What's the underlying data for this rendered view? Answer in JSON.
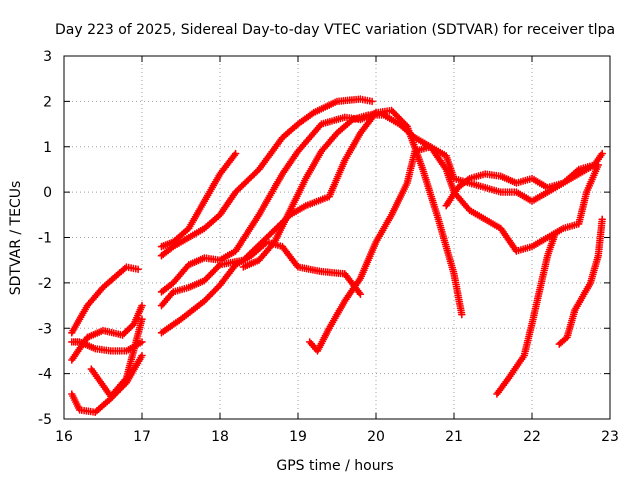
{
  "chart_data": {
    "type": "scatter",
    "title": "Day 223 of 2025, Sidereal Day-to-day VTEC variation (SDTVAR) for receiver tlpa",
    "xlabel": "GPS time / hours",
    "ylabel": "SDTVAR / TECUs",
    "xlim": [
      16,
      23
    ],
    "ylim": [
      -5,
      3
    ],
    "xticks": [
      "16",
      "17",
      "18",
      "19",
      "20",
      "21",
      "22",
      "23"
    ],
    "yticks": [
      "-5",
      "-4",
      "-3",
      "-2",
      "-1",
      "0",
      "1",
      "2",
      "3"
    ],
    "grid": true,
    "marker": "+",
    "color": "#ff0000",
    "series": [
      {
        "name": "s1",
        "x": [
          16.1,
          16.3,
          16.5,
          16.75,
          16.9,
          17.0
        ],
        "y": [
          -3.7,
          -3.2,
          -3.05,
          -3.15,
          -2.9,
          -2.5
        ]
      },
      {
        "name": "s2",
        "x": [
          16.1,
          16.3,
          16.5,
          16.8,
          16.95
        ],
        "y": [
          -3.1,
          -2.5,
          -2.1,
          -1.65,
          -1.7
        ]
      },
      {
        "name": "s3",
        "x": [
          16.1,
          16.2,
          16.4,
          16.6,
          16.8,
          17.0
        ],
        "y": [
          -3.3,
          -3.3,
          -3.45,
          -3.5,
          -3.5,
          -3.3
        ]
      },
      {
        "name": "s4",
        "x": [
          16.1,
          16.2,
          16.4,
          16.6,
          16.8,
          17.0
        ],
        "y": [
          -4.45,
          -4.8,
          -4.85,
          -4.55,
          -4.2,
          -3.6
        ]
      },
      {
        "name": "s5",
        "x": [
          16.35,
          16.6,
          16.8,
          17.0
        ],
        "y": [
          -3.9,
          -4.5,
          -4.1,
          -2.8
        ]
      },
      {
        "name": "s6",
        "x": [
          17.25,
          17.4,
          17.6,
          17.8,
          18.0,
          18.2
        ],
        "y": [
          -1.2,
          -1.1,
          -0.8,
          -0.2,
          0.4,
          0.85
        ]
      },
      {
        "name": "s7",
        "x": [
          17.25,
          17.4,
          17.6,
          17.8,
          18.0,
          18.2,
          18.5,
          18.8,
          19.0,
          19.2,
          19.5,
          19.8,
          19.95
        ],
        "y": [
          -1.4,
          -1.2,
          -1.0,
          -0.8,
          -0.5,
          0.0,
          0.5,
          1.2,
          1.5,
          1.75,
          2.0,
          2.05,
          2.0
        ]
      },
      {
        "name": "s8",
        "x": [
          17.25,
          17.4,
          17.6,
          17.8,
          18.0,
          18.2,
          18.5,
          18.8,
          19.0,
          19.3,
          19.6,
          19.8,
          20.0
        ],
        "y": [
          -2.2,
          -2.0,
          -1.6,
          -1.45,
          -1.5,
          -1.3,
          -0.5,
          0.4,
          0.9,
          1.5,
          1.65,
          1.6,
          1.75
        ]
      },
      {
        "name": "s9",
        "x": [
          17.25,
          17.5,
          17.8,
          18.0,
          18.2,
          18.4,
          18.6,
          18.8,
          19.0,
          19.3,
          19.6,
          19.8
        ],
        "y": [
          -3.1,
          -2.8,
          -2.4,
          -2.05,
          -1.6,
          -1.4,
          -1.1,
          -1.2,
          -1.65,
          -1.75,
          -1.8,
          -2.25
        ]
      },
      {
        "name": "s10",
        "x": [
          17.25,
          17.4,
          17.6,
          17.8,
          18.0,
          18.3,
          18.6,
          18.9,
          19.1,
          19.4,
          19.6,
          19.8,
          20.0,
          20.2,
          20.4,
          20.6,
          20.8,
          21.0,
          21.1
        ],
        "y": [
          -2.5,
          -2.2,
          -2.1,
          -1.95,
          -1.6,
          -1.5,
          -1.0,
          -0.5,
          -0.3,
          -0.1,
          0.7,
          1.3,
          1.75,
          1.8,
          1.45,
          0.5,
          -0.6,
          -1.8,
          -2.7
        ]
      },
      {
        "name": "s11",
        "x": [
          18.3,
          18.5,
          18.7,
          18.9,
          19.1,
          19.3,
          19.5,
          19.7,
          19.9,
          20.1,
          20.3,
          20.5,
          20.7,
          20.9,
          21.0,
          21.2,
          21.4,
          21.6,
          21.8,
          22.0,
          22.2,
          22.4,
          22.6,
          22.7,
          22.85
        ],
        "y": [
          -1.65,
          -1.5,
          -1.1,
          -0.4,
          0.3,
          0.9,
          1.3,
          1.6,
          1.7,
          1.7,
          1.5,
          1.2,
          1.0,
          0.5,
          0.0,
          -0.4,
          -0.6,
          -0.8,
          -1.3,
          -1.2,
          -1.0,
          -0.8,
          -0.7,
          0.0,
          0.6
        ]
      },
      {
        "name": "s12",
        "x": [
          19.15,
          19.25,
          19.4,
          19.6,
          19.8,
          20.0,
          20.2,
          20.4,
          20.5,
          20.7,
          20.9,
          21.0,
          21.2,
          21.4,
          21.6,
          21.8,
          22.0,
          22.2,
          22.4,
          22.6,
          22.8
        ],
        "y": [
          -3.3,
          -3.5,
          -3.0,
          -2.4,
          -1.9,
          -1.1,
          -0.5,
          0.2,
          0.9,
          1.0,
          0.8,
          0.3,
          0.2,
          0.1,
          0.0,
          0.0,
          -0.2,
          0.0,
          0.2,
          0.4,
          0.6
        ]
      },
      {
        "name": "s13",
        "x": [
          20.9,
          21.05,
          21.2,
          21.4,
          21.6,
          21.8,
          22.0,
          22.2,
          22.4,
          22.6,
          22.8,
          22.9
        ],
        "y": [
          -0.3,
          0.1,
          0.3,
          0.4,
          0.35,
          0.2,
          0.3,
          0.1,
          0.2,
          0.5,
          0.6,
          0.85
        ]
      },
      {
        "name": "s14",
        "x": [
          21.55,
          21.7,
          21.8,
          21.9,
          22.0,
          22.2,
          22.3
        ],
        "y": [
          -4.45,
          -4.1,
          -3.85,
          -3.6,
          -2.9,
          -1.4,
          -0.9
        ]
      },
      {
        "name": "s15",
        "x": [
          22.35,
          22.45,
          22.55,
          22.65,
          22.75,
          22.85,
          22.9
        ],
        "y": [
          -3.35,
          -3.2,
          -2.6,
          -2.3,
          -2.0,
          -1.4,
          -0.6
        ]
      }
    ]
  }
}
